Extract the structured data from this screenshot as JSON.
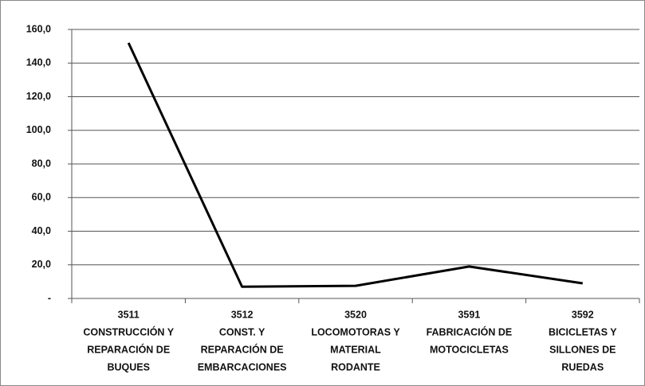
{
  "chart_data": {
    "type": "line",
    "categories": [
      [
        "3511",
        "CONSTRUCCIÓN Y",
        "REPARACIÓN DE",
        "BUQUES"
      ],
      [
        "3512",
        "CONST. Y",
        "REPARACIÓN DE",
        "EMBARCACIONES"
      ],
      [
        "3520",
        "LOCOMOTORAS Y",
        "MATERIAL",
        "RODANTE"
      ],
      [
        "3591",
        "FABRICACIÓN DE",
        "MOTOCICLETAS"
      ],
      [
        "3592",
        "BICICLETAS Y",
        "SILLONES DE",
        "RUEDAS"
      ]
    ],
    "values": [
      152,
      7,
      7.5,
      19,
      9
    ],
    "color": "#000000",
    "ylim": [
      0,
      160
    ],
    "yticks": [
      {
        "value": 0,
        "label": "-"
      },
      {
        "value": 20,
        "label": "20,0"
      },
      {
        "value": 40,
        "label": "40,0"
      },
      {
        "value": 60,
        "label": "60,0"
      },
      {
        "value": 80,
        "label": "80,0"
      },
      {
        "value": 100,
        "label": "100,0"
      },
      {
        "value": 120,
        "label": "120,0"
      },
      {
        "value": 140,
        "label": "140,0"
      },
      {
        "value": 160,
        "label": "160,0"
      }
    ],
    "grid": true
  }
}
